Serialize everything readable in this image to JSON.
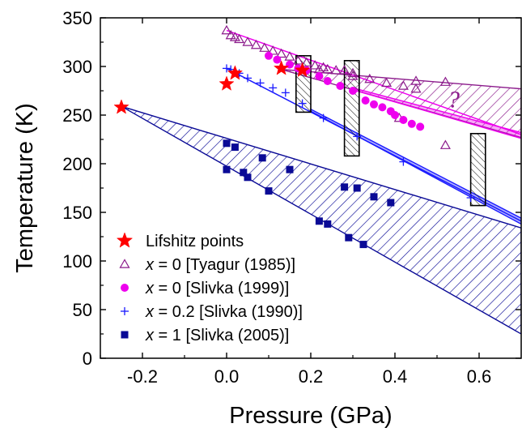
{
  "chart_data": {
    "type": "scatter",
    "xlabel": "Pressure (GPa)",
    "ylabel": "Temperature (K)",
    "xlim": [
      -0.3,
      0.7
    ],
    "ylim": [
      0,
      350
    ],
    "xticks": [
      -0.2,
      0.0,
      0.2,
      0.4,
      0.6
    ],
    "xtick_labels": [
      "-0.2",
      "0.0",
      "0.2",
      "0.4",
      "0.6"
    ],
    "yticks": [
      0,
      50,
      100,
      150,
      200,
      250,
      300,
      350
    ],
    "ytick_labels": [
      "0",
      "50",
      "100",
      "150",
      "200",
      "250",
      "300",
      "350"
    ],
    "annotation": "?",
    "legend_position": "bottom-left",
    "colors": {
      "lifshitz": "#ff0000",
      "tyagur": "#8b1a8b",
      "slivka1999": "#ee00ee",
      "slivka1990": "#1a1aff",
      "slivka2005": "#0a0a96"
    },
    "series": [
      {
        "name": "Lifshitz points",
        "marker": "star",
        "points": [
          [
            -0.25,
            258
          ],
          [
            0.0,
            282
          ],
          [
            0.02,
            293
          ],
          [
            0.13,
            298
          ],
          [
            0.18,
            296
          ]
        ]
      },
      {
        "name_prefix": "x",
        "name_suffix": " = 0 [Tyagur (1985)]",
        "marker": "open-triangle",
        "points": [
          [
            0.0,
            337
          ],
          [
            0.01,
            332
          ],
          [
            0.02,
            330
          ],
          [
            0.03,
            328
          ],
          [
            0.05,
            325
          ],
          [
            0.07,
            322
          ],
          [
            0.09,
            319
          ],
          [
            0.11,
            316
          ],
          [
            0.13,
            313
          ],
          [
            0.15,
            310
          ],
          [
            0.17,
            306
          ],
          [
            0.19,
            304
          ],
          [
            0.21,
            301
          ],
          [
            0.23,
            299
          ],
          [
            0.26,
            296
          ],
          [
            0.3,
            293
          ],
          [
            0.3,
            290
          ],
          [
            0.34,
            287
          ],
          [
            0.38,
            283
          ],
          [
            0.42,
            280
          ],
          [
            0.45,
            277
          ],
          [
            0.52,
            284
          ],
          [
            0.52,
            219
          ],
          [
            0.45,
            285
          ],
          [
            0.22,
            297
          ],
          [
            0.24,
            297
          ],
          [
            0.28,
            296
          ],
          [
            0.41,
            247
          ]
        ]
      },
      {
        "name_prefix": "x",
        "name_suffix": " = 0 [Slivka (1999)]",
        "marker": "filled-circle",
        "points": [
          [
            0.1,
            311
          ],
          [
            0.12,
            307
          ],
          [
            0.15,
            302
          ],
          [
            0.17,
            298
          ],
          [
            0.19,
            296
          ],
          [
            0.22,
            290
          ],
          [
            0.24,
            285
          ],
          [
            0.27,
            280
          ],
          [
            0.3,
            275
          ],
          [
            0.33,
            265
          ],
          [
            0.35,
            261
          ],
          [
            0.37,
            258
          ],
          [
            0.39,
            254
          ],
          [
            0.4,
            250
          ],
          [
            0.42,
            245
          ],
          [
            0.44,
            241
          ],
          [
            0.46,
            238
          ]
        ]
      },
      {
        "name_prefix": "x",
        "name_suffix": " = 0.2 [Slivka (1990)]",
        "marker": "plus",
        "points": [
          [
            0.0,
            298
          ],
          [
            0.01,
            297
          ],
          [
            0.03,
            293
          ],
          [
            0.05,
            288
          ],
          [
            0.08,
            283
          ],
          [
            0.11,
            278
          ],
          [
            0.14,
            273
          ],
          [
            0.18,
            262
          ],
          [
            0.23,
            247
          ],
          [
            0.31,
            228
          ],
          [
            0.42,
            202
          ],
          [
            0.58,
            165
          ]
        ]
      },
      {
        "name_prefix": "x",
        "name_suffix": " = 1 [Slivka (2005)]",
        "marker": "filled-square",
        "points": [
          [
            0.0,
            221
          ],
          [
            0.02,
            217
          ],
          [
            0.0,
            194
          ],
          [
            0.04,
            191
          ],
          [
            0.05,
            186
          ],
          [
            0.085,
            206
          ],
          [
            0.1,
            172
          ],
          [
            0.15,
            194
          ],
          [
            0.22,
            141
          ],
          [
            0.24,
            138
          ],
          [
            0.28,
            176
          ],
          [
            0.31,
            175
          ],
          [
            0.29,
            124
          ],
          [
            0.325,
            117
          ],
          [
            0.35,
            166
          ],
          [
            0.39,
            160
          ]
        ]
      }
    ],
    "bands": [
      {
        "color": "#8b1a8b",
        "upper": [
          [
            0.13,
            297
          ],
          [
            0.7,
            277
          ]
        ],
        "lower": [
          [
            0.13,
            297
          ],
          [
            0.7,
            227
          ]
        ]
      },
      {
        "color": "#0a0a96",
        "upper": [
          [
            -0.25,
            259
          ],
          [
            0.7,
            134
          ]
        ],
        "lower": [
          [
            -0.25,
            259
          ],
          [
            0.7,
            25
          ]
        ]
      },
      {
        "color": "#ee00ee",
        "upper": [
          [
            0.3,
            278
          ],
          [
            0.7,
            232
          ]
        ],
        "lower": [
          [
            0.3,
            276
          ],
          [
            0.7,
            226
          ]
        ]
      },
      {
        "color": "#1a1aff",
        "upper": [
          [
            0.2,
            256
          ],
          [
            0.7,
            144
          ]
        ],
        "lower": [
          [
            0.2,
            254
          ],
          [
            0.7,
            138
          ]
        ]
      }
    ],
    "lines": [
      {
        "color": "#ee00ee",
        "from": [
          0.0,
          337
        ],
        "to": [
          0.7,
          230
        ]
      },
      {
        "color": "#1a1aff",
        "from": [
          0.0,
          298
        ],
        "to": [
          0.7,
          141
        ]
      }
    ],
    "hatched_boxes": [
      {
        "x": [
          0.165,
          0.2
        ],
        "y": [
          253,
          311
        ]
      },
      {
        "x": [
          0.28,
          0.315
        ],
        "y": [
          208,
          306
        ]
      },
      {
        "x": [
          0.58,
          0.615
        ],
        "y": [
          157,
          231
        ]
      }
    ]
  }
}
